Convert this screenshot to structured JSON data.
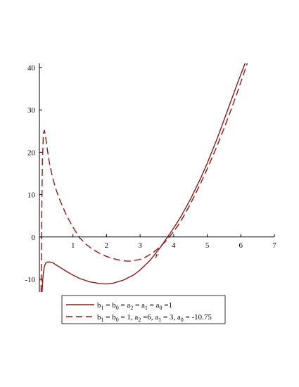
{
  "chart_data": {
    "type": "line",
    "title": "",
    "xlabel": "r",
    "ylabel": "",
    "xlim": [
      0,
      7
    ],
    "ylim": [
      -13,
      41
    ],
    "x_ticks": [
      1,
      2,
      3,
      4,
      5,
      6,
      7
    ],
    "y_ticks": [
      -10,
      0,
      10,
      20,
      30,
      40
    ],
    "grid": false,
    "legend_position": "bottom",
    "colors": {
      "curve": "#8b1a1a",
      "axis": "#000000"
    },
    "series": [
      {
        "legend": {
          "b1": "b",
          "s1": "1",
          "t1": " = b",
          "s2": "0",
          "t2": " = a",
          "s3": "2",
          "t3": " = a",
          "s4": "1",
          "t4": " = a",
          "s5": "0",
          "t5": " =1"
        },
        "style": "solid",
        "x": [
          0.08,
          0.1,
          0.12,
          0.15,
          0.2,
          0.25,
          0.3,
          0.4,
          0.5,
          0.6,
          0.8,
          1.0,
          1.2,
          1.5,
          1.8,
          2.0,
          2.2,
          2.5,
          2.8,
          3.0,
          3.3,
          3.6,
          3.8,
          4.0,
          4.2,
          4.5,
          4.8,
          5.0,
          5.3,
          5.6,
          5.9,
          6.2
        ],
        "y": [
          -13,
          -10.1,
          -8.3,
          -6.9,
          -6.0,
          -5.9,
          -5.9,
          -6.1,
          -6.6,
          -7.1,
          -8.1,
          -9.0,
          -9.8,
          -10.6,
          -11.0,
          -11.1,
          -10.9,
          -10.2,
          -9.0,
          -7.8,
          -5.5,
          -2.5,
          -0.2,
          2.1,
          4.6,
          8.9,
          13.8,
          17.4,
          23.3,
          29.8,
          36.3,
          42.5
        ]
      },
      {
        "legend": {
          "b1": "b",
          "s1": "1",
          "t1": " = b",
          "s2": "0",
          "t2": " = 1, a",
          "s3": "2",
          "t3": " =6, a",
          "s4": "1",
          "t4": " = 3, a",
          "s5": "0",
          "t5": " = -10.75"
        },
        "style": "dashed",
        "x": [
          0.05,
          0.07,
          0.09,
          0.12,
          0.15,
          0.18,
          0.22,
          0.3,
          0.4,
          0.5,
          0.6,
          0.8,
          1.0,
          1.2,
          1.4,
          1.6,
          1.8,
          2.0,
          2.2,
          2.4,
          2.6,
          2.7,
          2.8,
          3.0,
          3.2,
          3.4,
          3.6,
          3.8,
          4.0,
          4.2,
          4.5,
          4.8,
          5.0,
          5.3,
          5.6,
          5.9,
          6.3
        ],
        "y": [
          -13,
          5.0,
          18.0,
          24.5,
          25.2,
          24.0,
          21.5,
          17.4,
          13.8,
          11.1,
          8.9,
          5.2,
          2.3,
          -0.2,
          -1.8,
          -3.0,
          -3.9,
          -4.6,
          -5.1,
          -5.5,
          -5.7,
          -5.7,
          -5.6,
          -5.3,
          -4.6,
          -3.6,
          -2.3,
          -0.7,
          1.3,
          3.5,
          7.8,
          12.6,
          16.1,
          21.6,
          27.7,
          34.2,
          43.5
        ]
      }
    ]
  }
}
